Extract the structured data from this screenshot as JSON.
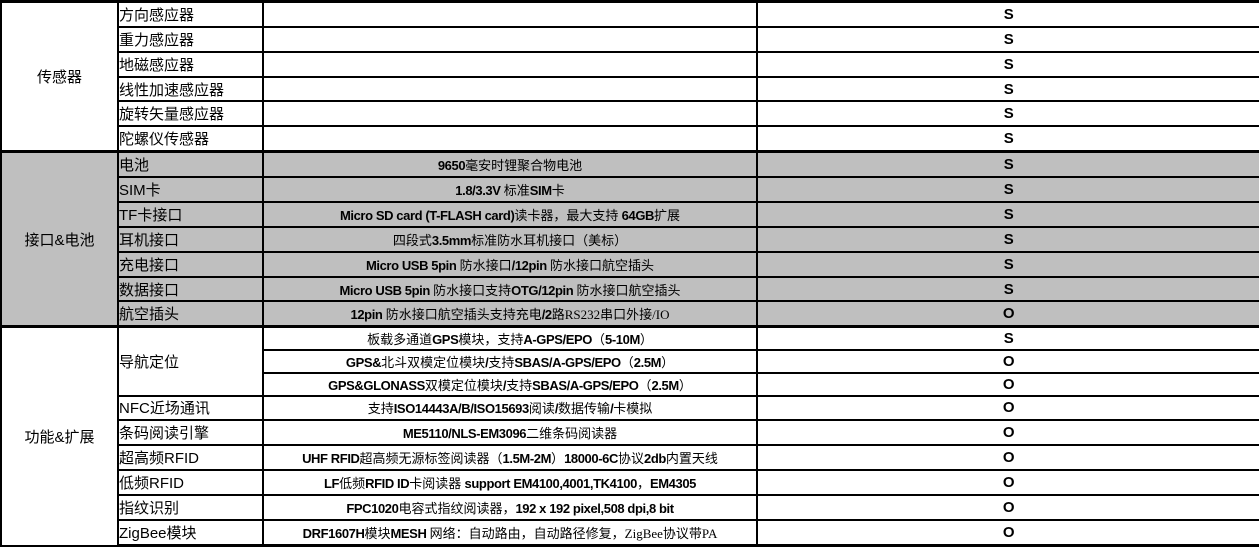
{
  "table": {
    "flag_values": {
      "standard": "S",
      "optional": "O"
    },
    "colors": {
      "shaded_row_bg": "#bfbfbf",
      "grid_line": "#000000",
      "text": "#000000"
    },
    "sections": [
      {
        "category": "传感器",
        "shaded": false,
        "rows": [
          {
            "item": "方向感应器",
            "desc": [],
            "flag": "S"
          },
          {
            "item": "重力感应器",
            "desc": [],
            "flag": "S"
          },
          {
            "item": "地磁感应器",
            "desc": [],
            "flag": "S"
          },
          {
            "item": "线性加速感应器",
            "desc": [],
            "flag": "S"
          },
          {
            "item": "旋转矢量感应器",
            "desc": [],
            "flag": "S"
          },
          {
            "item": "陀螺仪传感器",
            "desc": [],
            "flag": "S"
          }
        ]
      },
      {
        "category": "接口&电池",
        "shaded": true,
        "rows": [
          {
            "item": "电池",
            "desc": [
              {
                "t": "9650",
                "b": true
              },
              {
                "t": "毫安时锂聚合物电池",
                "b": false
              }
            ],
            "flag": "S"
          },
          {
            "item": "SIM卡",
            "desc": [
              {
                "t": "1.8/3.3V ",
                "b": true
              },
              {
                "t": "标准",
                "b": false
              },
              {
                "t": "SIM",
                "b": true
              },
              {
                "t": "卡",
                "b": false
              }
            ],
            "flag": "S"
          },
          {
            "item": "TF卡接口",
            "desc": [
              {
                "t": "Micro SD card (T-FLASH card)",
                "b": true
              },
              {
                "t": "读卡器，最大支持 ",
                "b": false
              },
              {
                "t": "64GB",
                "b": true
              },
              {
                "t": "扩展",
                "b": false
              }
            ],
            "flag": "S"
          },
          {
            "item": "耳机接口",
            "desc": [
              {
                "t": "四段式",
                "b": false
              },
              {
                "t": "3.5mm",
                "b": true
              },
              {
                "t": "标准防水耳机接口（美标）",
                "b": false
              }
            ],
            "flag": "S"
          },
          {
            "item": "充电接口",
            "desc": [
              {
                "t": "Micro USB 5pin ",
                "b": true
              },
              {
                "t": "防水接口",
                "b": false
              },
              {
                "t": "/12pin ",
                "b": true
              },
              {
                "t": "防水接口航空插头",
                "b": false
              }
            ],
            "flag": "S"
          },
          {
            "item": "数据接口",
            "desc": [
              {
                "t": "Micro USB 5pin ",
                "b": true
              },
              {
                "t": "防水接口支持",
                "b": false
              },
              {
                "t": "OTG/12pin ",
                "b": true
              },
              {
                "t": "防水接口航空插头",
                "b": false
              }
            ],
            "flag": "S"
          },
          {
            "item": "航空插头",
            "desc": [
              {
                "t": "12pin ",
                "b": true
              },
              {
                "t": "防水接口航空插头支持充电",
                "b": false
              },
              {
                "t": "/2",
                "b": true
              },
              {
                "t": "路RS232串口外接/IO",
                "b": false
              }
            ],
            "flag": "O"
          }
        ]
      },
      {
        "category": "功能&扩展",
        "shaded": false,
        "rows": [
          {
            "item": "导航定位",
            "item_rowspan": 3,
            "desc": [
              {
                "t": "板载多通道",
                "b": false
              },
              {
                "t": "GPS",
                "b": true
              },
              {
                "t": "模块，支持",
                "b": false
              },
              {
                "t": "A-GPS/EPO",
                "b": true
              },
              {
                "t": "（",
                "b": false
              },
              {
                "t": "5-10M",
                "b": true
              },
              {
                "t": "）",
                "b": false
              }
            ],
            "flag": "S"
          },
          {
            "item": null,
            "desc": [
              {
                "t": "GPS&",
                "b": true
              },
              {
                "t": "北斗双模定位模块",
                "b": false
              },
              {
                "t": "/",
                "b": true
              },
              {
                "t": "支持",
                "b": false
              },
              {
                "t": "SBAS/A-GPS/EPO",
                "b": true
              },
              {
                "t": "（",
                "b": false
              },
              {
                "t": "2.5M",
                "b": true
              },
              {
                "t": "）",
                "b": false
              }
            ],
            "flag": "O"
          },
          {
            "item": null,
            "desc": [
              {
                "t": "GPS&GLONASS",
                "b": true
              },
              {
                "t": "双模定位模块",
                "b": false
              },
              {
                "t": "/",
                "b": true
              },
              {
                "t": "支持",
                "b": false
              },
              {
                "t": "SBAS/A-GPS/EPO",
                "b": true
              },
              {
                "t": "（",
                "b": false
              },
              {
                "t": "2.5M",
                "b": true
              },
              {
                "t": "）",
                "b": false
              }
            ],
            "flag": "O"
          },
          {
            "item": "NFC近场通讯",
            "desc": [
              {
                "t": "支持",
                "b": false
              },
              {
                "t": "ISO14443A/B/ISO15693",
                "b": true
              },
              {
                "t": "阅读",
                "b": false
              },
              {
                "t": "/",
                "b": true
              },
              {
                "t": "数据传输",
                "b": false
              },
              {
                "t": "/",
                "b": true
              },
              {
                "t": "卡模拟",
                "b": false
              }
            ],
            "flag": "O"
          },
          {
            "item": "条码阅读引擎",
            "desc": [
              {
                "t": "ME5110/NLS-EM3096",
                "b": true
              },
              {
                "t": "二维条码阅读器",
                "b": false
              }
            ],
            "flag": "O"
          },
          {
            "item": "超高频RFID",
            "desc": [
              {
                "t": "UHF RFID",
                "b": true
              },
              {
                "t": "超高频无源标签阅读器（",
                "b": false
              },
              {
                "t": "1.5M-2M",
                "b": true
              },
              {
                "t": "）",
                "b": false
              },
              {
                "t": "18000-6C",
                "b": true
              },
              {
                "t": "协议",
                "b": false
              },
              {
                "t": "2db",
                "b": true
              },
              {
                "t": "内置天线",
                "b": false
              }
            ],
            "flag": "O"
          },
          {
            "item": "低频RFID",
            "desc": [
              {
                "t": "LF",
                "b": true
              },
              {
                "t": "低频",
                "b": false
              },
              {
                "t": "RFID ID",
                "b": true
              },
              {
                "t": "卡阅读器 ",
                "b": false
              },
              {
                "t": "support EM4100,4001,TK4100",
                "b": true
              },
              {
                "t": "，",
                "b": false
              },
              {
                "t": "EM4305",
                "b": true
              }
            ],
            "flag": "O"
          },
          {
            "item": "指纹识别",
            "desc": [
              {
                "t": "FPC1020",
                "b": true
              },
              {
                "t": "电容式指纹阅读器，",
                "b": false
              },
              {
                "t": "192 x 192 pixel,508 dpi,8 bit",
                "b": true
              }
            ],
            "flag": "O"
          },
          {
            "item": "ZigBee模块",
            "desc": [
              {
                "t": "DRF1607H",
                "b": true
              },
              {
                "t": "模块",
                "b": false
              },
              {
                "t": "MESH ",
                "b": true
              },
              {
                "t": "网络：自动路由，自动路径修复，ZigBee协议带PA",
                "b": false
              }
            ],
            "flag": "O"
          }
        ]
      }
    ]
  }
}
